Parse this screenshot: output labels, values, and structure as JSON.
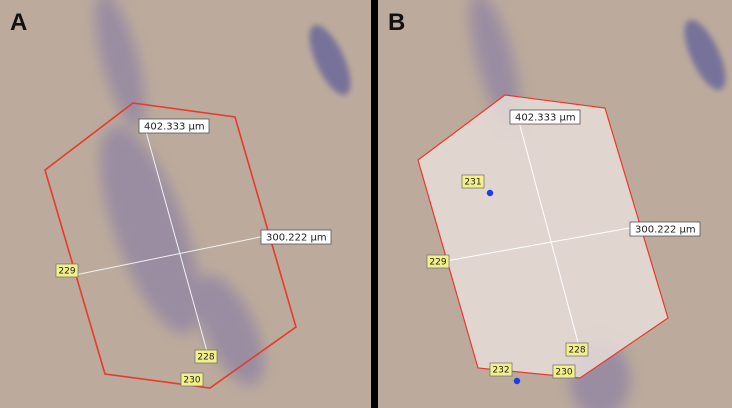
{
  "panels": [
    {
      "label": "A",
      "measurements": [
        "402.333 µm",
        "300.222 µm"
      ],
      "markers": [
        "229",
        "228",
        "230"
      ]
    },
    {
      "label": "B",
      "measurements": [
        "402.333 µm",
        "300.222 µm"
      ],
      "markers": [
        "231",
        "229",
        "228",
        "232",
        "230"
      ]
    }
  ]
}
